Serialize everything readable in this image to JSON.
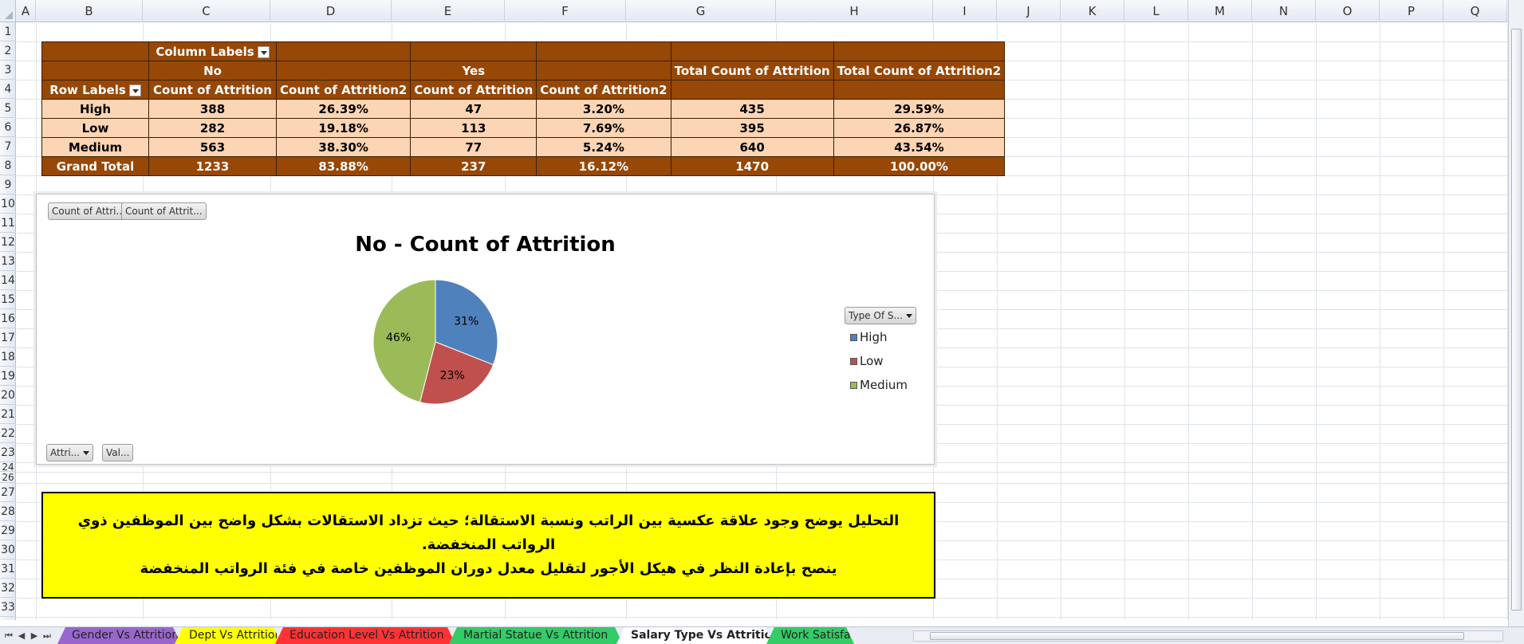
{
  "columns": [
    "A",
    "B",
    "C",
    "D",
    "E",
    "F",
    "G",
    "H",
    "I",
    "J",
    "K",
    "L",
    "M",
    "N",
    "O",
    "P",
    "Q"
  ],
  "rows": [
    "1",
    "2",
    "3",
    "4",
    "5",
    "6",
    "7",
    "8",
    "9",
    "10",
    "11",
    "12",
    "13",
    "14",
    "15",
    "16",
    "17",
    "18",
    "19",
    "20",
    "21",
    "22",
    "23",
    "24",
    "26",
    "27",
    "28",
    "29",
    "30",
    "31",
    "32",
    "33"
  ],
  "pivot": {
    "column_labels": "Column Labels",
    "row_labels": "Row Labels",
    "no": "No",
    "yes": "Yes",
    "total_count": "Total Count of Attrition",
    "total_count2": "Total Count of Attrition2",
    "count": "Count of Attrition",
    "count2": "Count of Attrition2",
    "body": [
      {
        "label": "High",
        "no_count": "388",
        "no_pct": "26.39%",
        "yes_count": "47",
        "yes_pct": "3.20%",
        "total": "435",
        "total_pct": "29.59%"
      },
      {
        "label": "Low",
        "no_count": "282",
        "no_pct": "19.18%",
        "yes_count": "113",
        "yes_pct": "7.69%",
        "total": "395",
        "total_pct": "26.87%"
      },
      {
        "label": "Medium",
        "no_count": "563",
        "no_pct": "38.30%",
        "yes_count": "77",
        "yes_pct": "5.24%",
        "total": "640",
        "total_pct": "43.54%"
      }
    ],
    "grand": {
      "label": "Grand Total",
      "no_count": "1233",
      "no_pct": "83.88%",
      "yes_count": "237",
      "yes_pct": "16.12%",
      "total": "1470",
      "total_pct": "100.00%"
    }
  },
  "chart": {
    "value_btn_1": "Count of Attri...",
    "value_btn_2": "Count of Attrit...",
    "axis_btn_1": "Attri...",
    "axis_btn_2": "Val...",
    "legend_btn": "Type Of S...",
    "legend": [
      {
        "label": "High",
        "color": "#4f81bd"
      },
      {
        "label": "Low",
        "color": "#c0504d"
      },
      {
        "label": "Medium",
        "color": "#9bbb59"
      }
    ]
  },
  "chart_data": {
    "type": "pie",
    "title": "No - Count of Attrition",
    "categories": [
      "High",
      "Low",
      "Medium"
    ],
    "values": [
      31,
      23,
      46
    ],
    "labels": [
      "31%",
      "23%",
      "46%"
    ]
  },
  "note": {
    "line1": "التحليل يوضح وجود علاقة عكسية بين الراتب ونسبة الاستقالة؛ حيث تزداد الاستقالات بشكل واضح بين الموظفين ذوي الرواتب المنخفضة.",
    "line2": "ينصح بإعادة النظر في هيكل الأجور لتقليل معدل دوران الموظفين خاصة في فئة الرواتب المنخفضة"
  },
  "tabs": [
    {
      "label": "Gender Vs Attrition",
      "color": "#9966cc"
    },
    {
      "label": "Dept Vs Attrition",
      "color": "#ffff00"
    },
    {
      "label": "Education Level Vs Attrition",
      "color": "#ff3333"
    },
    {
      "label": "Martial Statue Vs Attrition",
      "color": "#33cc66"
    },
    {
      "label": "Salary Type  Vs Attrition",
      "color": "#ffffff"
    },
    {
      "label": "Work Satisfac",
      "color": "#33cc66"
    }
  ]
}
